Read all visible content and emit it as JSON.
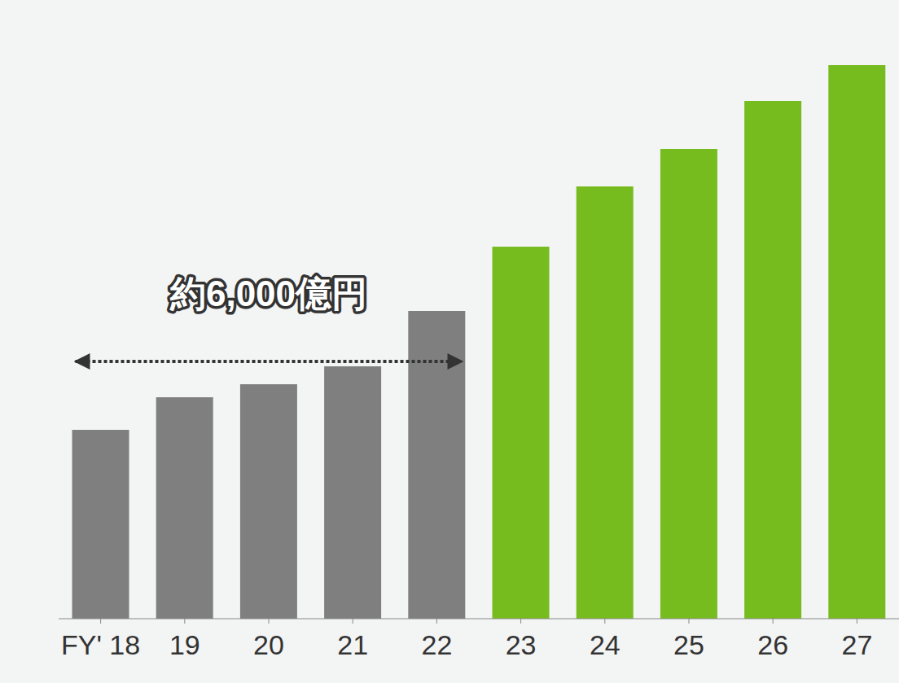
{
  "chart_data": {
    "type": "bar",
    "categories": [
      "FY' 18",
      "19",
      "20",
      "21",
      "22",
      "23",
      "24",
      "25",
      "26",
      "27"
    ],
    "values": [
      232,
      272,
      288,
      310,
      378,
      457,
      531,
      577,
      636,
      680
    ],
    "colors": [
      "#7f7f7f",
      "#7f7f7f",
      "#7f7f7f",
      "#7f7f7f",
      "#7f7f7f",
      "#77bc1f",
      "#77bc1f",
      "#77bc1f",
      "#77bc1f",
      "#77bc1f"
    ],
    "ylim": [
      0,
      700
    ],
    "tick_labels": "x",
    "grid": false,
    "annotations": [
      {
        "text": "約6,000億円",
        "from": "FY' 18",
        "to": "22"
      }
    ]
  }
}
